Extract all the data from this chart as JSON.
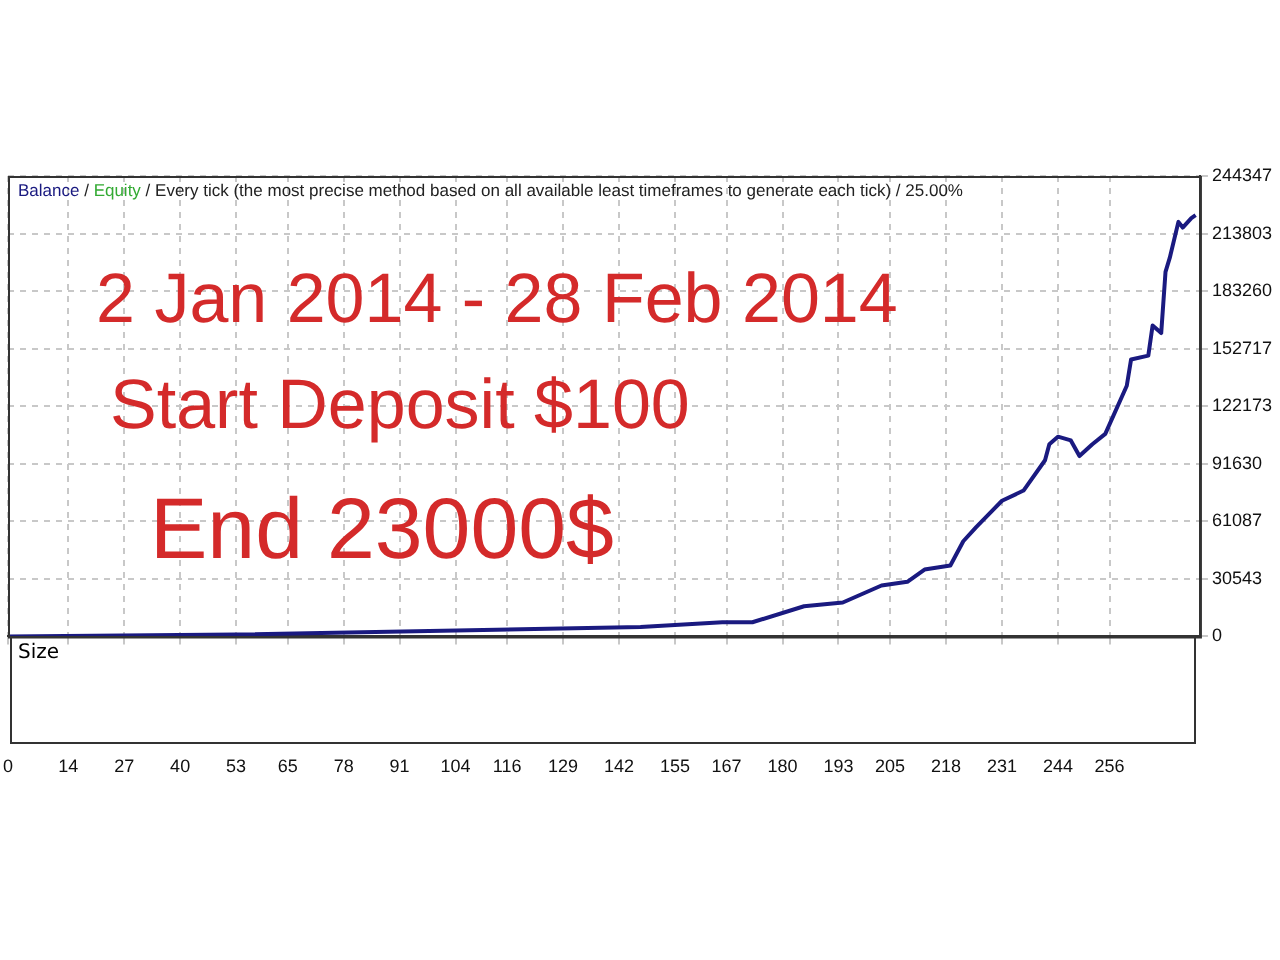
{
  "chart_data": {
    "type": "line",
    "annotations": [
      "/",
      "/",
      "Every tick (the most precise method based on all available least timeframes to generate each tick) / 25.00%",
      "2 Jan 2014 - 28 Feb 2014",
      "Start Deposit $100",
      "End 23000$",
      "Size"
    ],
    "x": [
      0,
      53,
      147,
      166,
      173,
      185,
      194,
      203,
      209,
      213,
      219,
      222,
      225,
      231,
      236,
      241,
      242,
      244,
      247,
      249,
      252,
      255,
      260,
      261,
      265,
      266,
      268,
      269,
      270,
      272,
      273,
      275,
      276
    ],
    "series": [
      {
        "name": "Balance",
        "color": "#1a1a80",
        "values": [
          0,
          1000,
          5000,
          7500,
          7500,
          16000,
          18000,
          27000,
          29000,
          35500,
          37600,
          50500,
          58000,
          72000,
          77400,
          93500,
          102000,
          106000,
          104000,
          95700,
          102000,
          107500,
          133000,
          147000,
          149000,
          165000,
          161000,
          193500,
          201000,
          220000,
          217000,
          222000,
          223600
        ]
      },
      {
        "name": "Equity",
        "color": "#33aa33",
        "values": [
          null,
          null,
          null,
          null,
          null,
          null,
          null,
          null,
          null,
          null,
          null,
          null,
          null,
          null,
          null,
          null,
          null,
          null,
          null,
          null,
          null,
          null,
          null,
          null,
          null,
          null,
          null,
          null,
          null,
          null,
          null,
          null,
          null
        ]
      }
    ],
    "xlim": [
      0,
      277
    ],
    "xticks": [
      0,
      14,
      27,
      40,
      53,
      65,
      78,
      91,
      104,
      116,
      129,
      142,
      155,
      167,
      180,
      193,
      205,
      218,
      231,
      244,
      256
    ],
    "ylim": [
      0,
      244347
    ],
    "yticks": [
      0,
      30543,
      61087,
      91630,
      122173,
      152717,
      183260,
      213803,
      244347
    ],
    "grid": true,
    "legend": "top left",
    "marker": "none",
    "line_style": "solid"
  }
}
